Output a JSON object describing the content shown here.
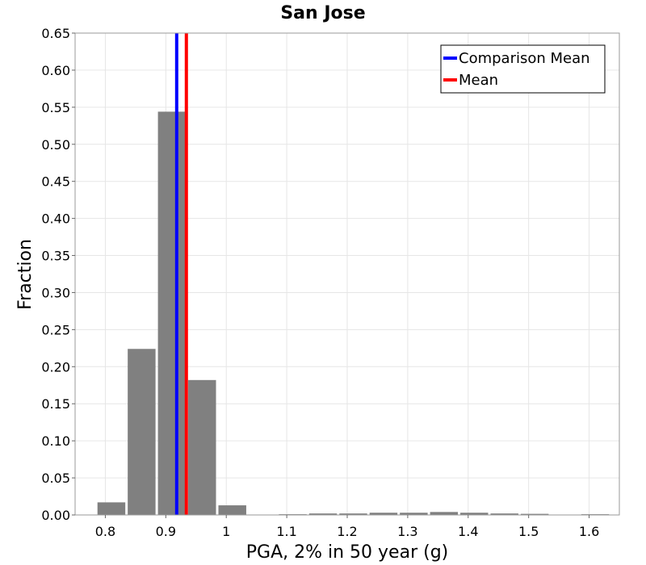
{
  "chart_data": {
    "type": "bar",
    "title": "San Jose",
    "xlabel": "PGA, 2% in 50 year (g)",
    "ylabel": "Fraction",
    "xlim": [
      0.75,
      1.65
    ],
    "ylim": [
      0,
      0.65
    ],
    "grid": true,
    "bin_width": 0.05,
    "x_ticks": [
      "0.8",
      "0.9",
      "1",
      "1.1",
      "1.2",
      "1.3",
      "1.4",
      "1.5",
      "1.6"
    ],
    "y_ticks": [
      "0.00",
      "0.05",
      "0.10",
      "0.15",
      "0.20",
      "0.25",
      "0.30",
      "0.35",
      "0.40",
      "0.45",
      "0.50",
      "0.55",
      "0.60",
      "0.65"
    ],
    "bars": [
      {
        "x": 0.81,
        "value": 0.017
      },
      {
        "x": 0.86,
        "value": 0.224
      },
      {
        "x": 0.91,
        "value": 0.544
      },
      {
        "x": 0.96,
        "value": 0.182
      },
      {
        "x": 1.01,
        "value": 0.013
      },
      {
        "x": 1.06,
        "value": 0.0005
      },
      {
        "x": 1.11,
        "value": 0.001
      },
      {
        "x": 1.16,
        "value": 0.002
      },
      {
        "x": 1.21,
        "value": 0.002
      },
      {
        "x": 1.26,
        "value": 0.003
      },
      {
        "x": 1.31,
        "value": 0.003
      },
      {
        "x": 1.36,
        "value": 0.004
      },
      {
        "x": 1.41,
        "value": 0.003
      },
      {
        "x": 1.46,
        "value": 0.002
      },
      {
        "x": 1.51,
        "value": 0.0015
      },
      {
        "x": 1.56,
        "value": 0.0005
      },
      {
        "x": 1.61,
        "value": 0.001
      }
    ],
    "bar_color": "#808080",
    "vlines": [
      {
        "name": "Comparison Mean",
        "x": 0.918,
        "color": "#0000ff"
      },
      {
        "name": "Mean",
        "x": 0.934,
        "color": "#ff0000"
      }
    ],
    "legend_position": "top-right"
  }
}
